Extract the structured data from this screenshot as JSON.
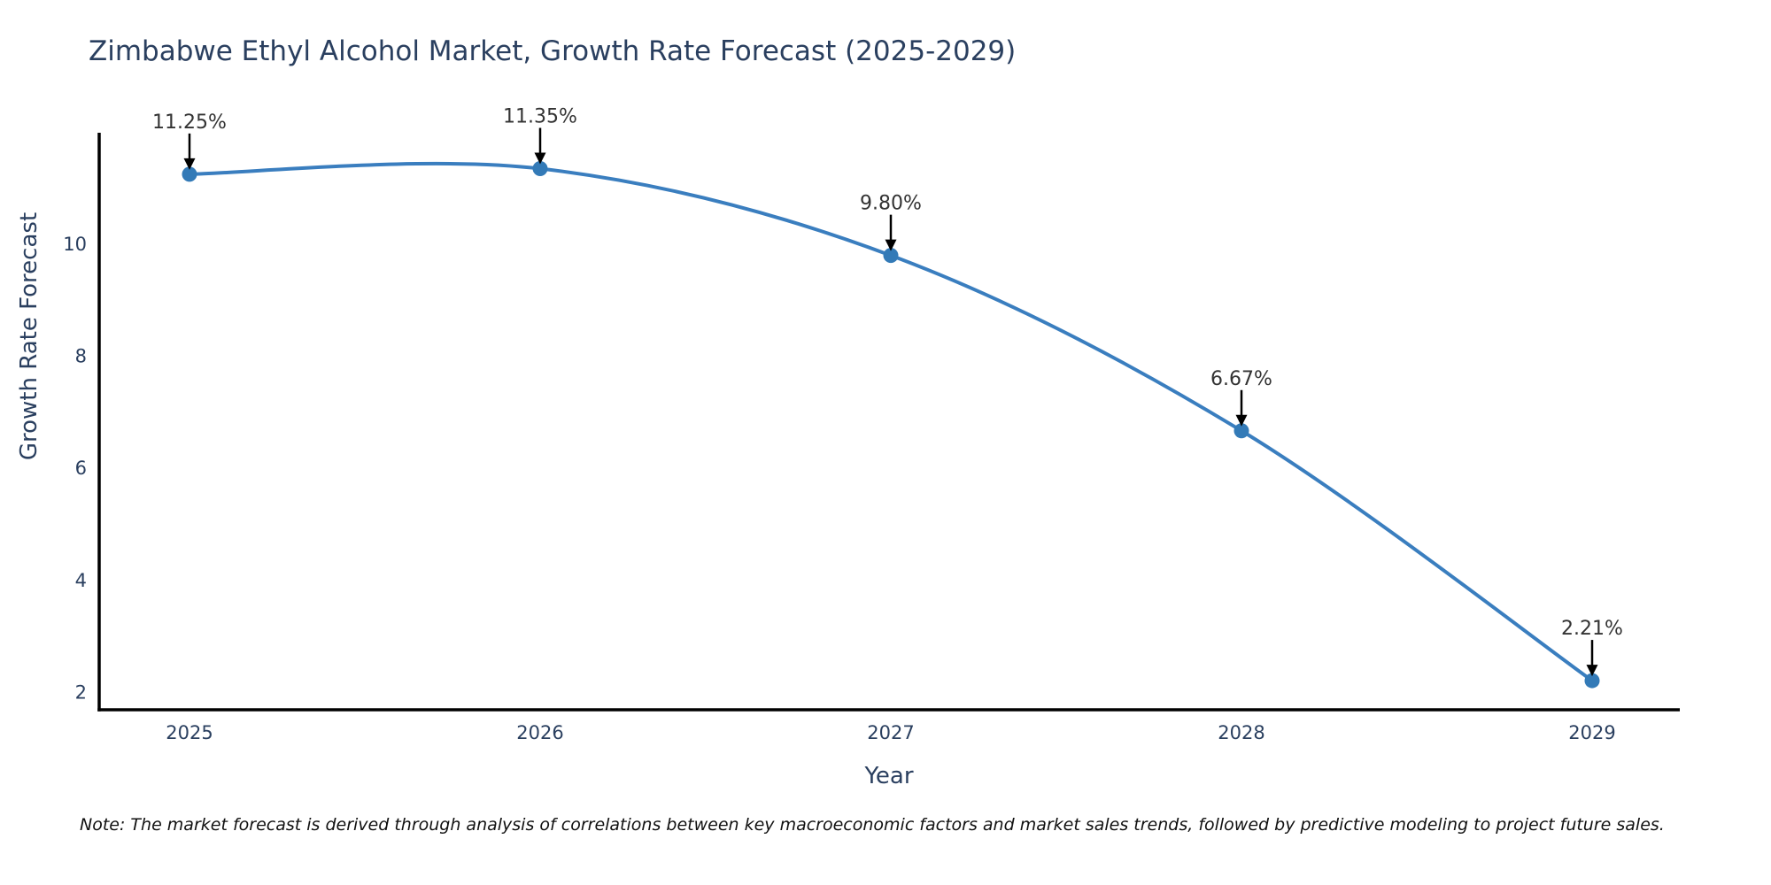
{
  "chart_data": {
    "type": "line",
    "title": "Zimbabwe Ethyl Alcohol Market, Growth Rate Forecast (2025-2029)",
    "xlabel": "Year",
    "ylabel": "Growth Rate Forecast",
    "x": [
      2025,
      2026,
      2027,
      2028,
      2029
    ],
    "y": [
      11.25,
      11.35,
      9.8,
      6.67,
      2.21
    ],
    "point_labels": [
      "11.25%",
      "11.35%",
      "9.80%",
      "6.67%",
      "2.21%"
    ],
    "x_tick_labels": [
      "2025",
      "2026",
      "2027",
      "2028",
      "2029"
    ],
    "y_tick_values": [
      2,
      4,
      6,
      8,
      10
    ],
    "ylim": [
      1.69,
      11.99
    ],
    "line_shape": "spline",
    "grid": false,
    "legend_position": "none",
    "colors": {
      "line": "#3a7ebf",
      "marker": "#337ab7",
      "axis": "#000000",
      "tick_text": "#2a3f5f",
      "title_text": "#2a3f5f",
      "annotation_text": "#333333",
      "arrow": "#000000",
      "background": "#ffffff"
    }
  },
  "note": {
    "text": "Note: The market forecast is derived through analysis of correlations between key macroeconomic factors and market sales trends, followed by predictive modeling to project future sales."
  }
}
